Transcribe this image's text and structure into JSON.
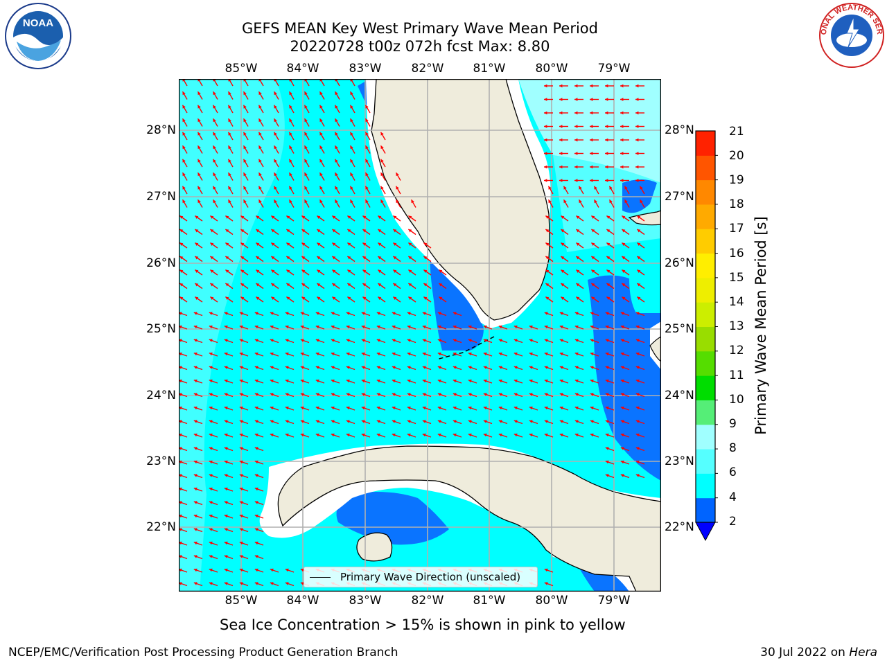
{
  "title": {
    "line1": "GEFS MEAN Key West Primary Wave Mean Period",
    "line2": "20220728 t00z 072h fcst   Max: 8.80"
  },
  "axes": {
    "lon_labels": [
      "85°W",
      "84°W",
      "83°W",
      "82°W",
      "81°W",
      "80°W",
      "79°W"
    ],
    "lat_labels": [
      "28°N",
      "27°N",
      "26°N",
      "25°N",
      "24°N",
      "23°N",
      "22°N"
    ],
    "lon_range": [
      -86.0,
      -78.3
    ],
    "lat_range": [
      21.0,
      28.75
    ],
    "grid": true
  },
  "legend": {
    "label": "Primary Wave Direction (unscaled)"
  },
  "colorbar": {
    "title": "Primary Wave Mean Period [s]",
    "tick_labels": [
      "21",
      "20",
      "19",
      "18",
      "17",
      "16",
      "15",
      "14",
      "13",
      "12",
      "11",
      "10",
      "9",
      "8",
      "6",
      "4",
      "2"
    ],
    "levels": [
      2,
      4,
      6,
      8,
      9,
      10,
      11,
      12,
      13,
      14,
      15,
      16,
      17,
      18,
      19,
      20,
      21
    ],
    "colors": [
      "#0064ff",
      "#00ffff",
      "#55ffff",
      "#a0ffff",
      "#55ee77",
      "#00dd00",
      "#55dd00",
      "#99dd00",
      "#ccee00",
      "#eeee00",
      "#ffee00",
      "#ffcc00",
      "#ffaa00",
      "#ff8800",
      "#ff5500",
      "#ff2200"
    ],
    "under_color": "#0000ff"
  },
  "map": {
    "ocean_color_main": "#00ffff",
    "ocean_color_light": "#55ffff",
    "ocean_color_lighter": "#a0ffff",
    "ocean_color_dark": "#0a74ff",
    "land_color": "#efecdc",
    "arrow_color": "#ff0000"
  },
  "notes": {
    "sea_ice": "Sea Ice Concentration > 15% is shown in pink to yellow"
  },
  "footer": {
    "left": "NCEP/EMC/Verification Post Processing Product Generation Branch",
    "right_prefix": "30 Jul 2022 on ",
    "right_host": "Hera"
  },
  "logos": {
    "noaa": "NOAA",
    "nws": "NATIONAL WEATHER SERVICE"
  }
}
